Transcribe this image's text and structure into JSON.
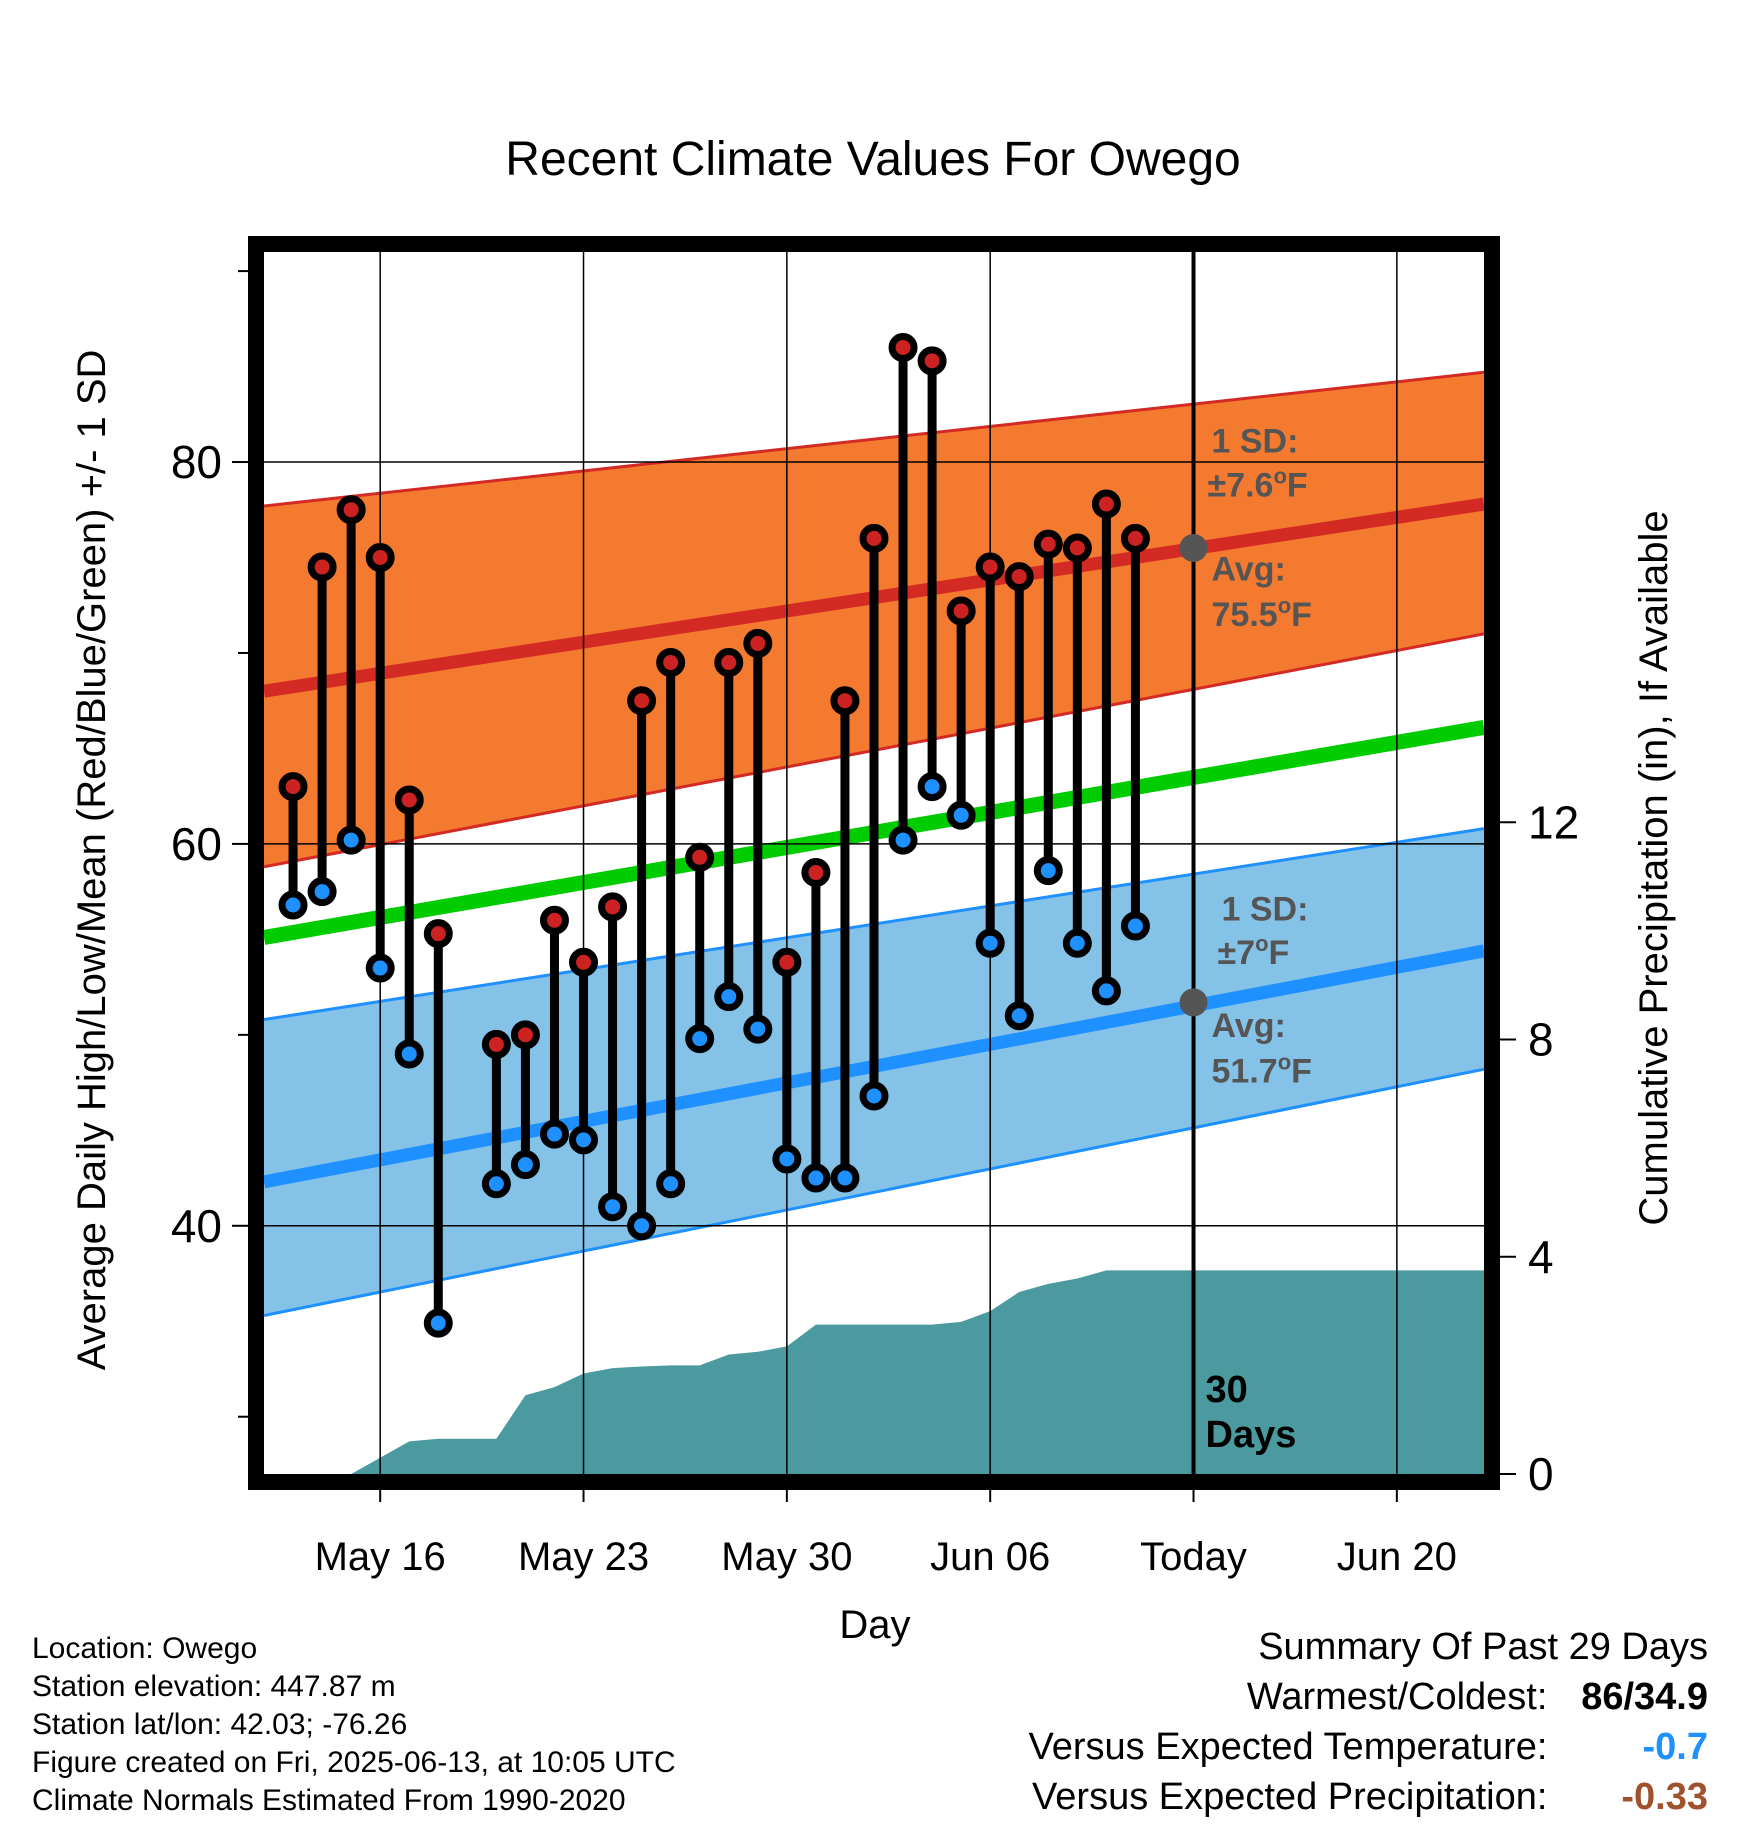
{
  "chart_data": {
    "type": "line",
    "title": "Recent Climate Values For Owego",
    "xlabel": "Day",
    "ylabel": "Average Daily High/Low/Mean (Red/Blue/Green) +/- 1 SD",
    "y2label": "Cumulative Precipitation (in), If Available",
    "xlim": [
      "2025-05-12",
      "2025-06-23"
    ],
    "ylim": [
      27,
      91
    ],
    "y2lim": [
      0,
      22.5
    ],
    "x_ticks": [
      {
        "date": "2025-05-16",
        "label": "May 16"
      },
      {
        "date": "2025-05-23",
        "label": "May 23"
      },
      {
        "date": "2025-05-30",
        "label": "May 30"
      },
      {
        "date": "2025-06-06",
        "label": "Jun 06"
      },
      {
        "date": "2025-06-13",
        "label": "Today"
      },
      {
        "date": "2025-06-20",
        "label": "Jun 20"
      }
    ],
    "y_ticks": [
      40,
      60,
      80
    ],
    "y2_ticks": [
      0,
      4,
      8,
      12
    ],
    "grid": true,
    "today": "2025-06-13",
    "period_label": [
      "30",
      "Days"
    ],
    "normals": {
      "dates": [
        "2025-05-12",
        "2025-06-23"
      ],
      "high_mean": [
        68.0,
        77.8
      ],
      "high_upper": [
        77.7,
        84.7
      ],
      "high_lower": [
        58.8,
        71.0
      ],
      "low_mean": [
        42.3,
        54.4
      ],
      "low_upper": [
        50.8,
        60.8
      ],
      "low_lower": [
        35.3,
        48.2
      ],
      "mean": [
        55.1,
        66.1
      ]
    },
    "series": [
      {
        "name": "High",
        "color": "#cc2222",
        "x": [
          "2025-05-13",
          "2025-05-14",
          "2025-05-15",
          "2025-05-16",
          "2025-05-17",
          "2025-05-18",
          "2025-05-20",
          "2025-05-21",
          "2025-05-22",
          "2025-05-23",
          "2025-05-24",
          "2025-05-25",
          "2025-05-26",
          "2025-05-27",
          "2025-05-28",
          "2025-05-29",
          "2025-05-30",
          "2025-05-31",
          "2025-06-01",
          "2025-06-02",
          "2025-06-03",
          "2025-06-04",
          "2025-06-05",
          "2025-06-06",
          "2025-06-07",
          "2025-06-08",
          "2025-06-09",
          "2025-06-10",
          "2025-06-11",
          "2025-06-12"
        ],
        "values": [
          63.0,
          74.5,
          77.5,
          75.0,
          62.3,
          55.3,
          49.5,
          50.0,
          56.0,
          53.8,
          56.7,
          67.5,
          69.5,
          59.3,
          69.5,
          70.5,
          53.8,
          58.5,
          67.5,
          76.0,
          86.0,
          85.3,
          72.2,
          74.5,
          74.0,
          75.7,
          75.5,
          77.8,
          76.0,
          null
        ]
      },
      {
        "name": "Low",
        "color": "#1e90ff",
        "x": [
          "2025-05-13",
          "2025-05-14",
          "2025-05-15",
          "2025-05-16",
          "2025-05-17",
          "2025-05-18",
          "2025-05-20",
          "2025-05-21",
          "2025-05-22",
          "2025-05-23",
          "2025-05-24",
          "2025-05-25",
          "2025-05-26",
          "2025-05-27",
          "2025-05-28",
          "2025-05-29",
          "2025-05-30",
          "2025-05-31",
          "2025-06-01",
          "2025-06-02",
          "2025-06-03",
          "2025-06-04",
          "2025-06-05",
          "2025-06-06",
          "2025-06-07",
          "2025-06-08",
          "2025-06-09",
          "2025-06-10",
          "2025-06-11",
          "2025-06-12"
        ],
        "values": [
          56.8,
          57.5,
          60.2,
          53.5,
          49.0,
          34.9,
          42.2,
          43.2,
          44.8,
          44.5,
          41.0,
          40.0,
          42.2,
          49.8,
          52.0,
          50.3,
          43.5,
          42.5,
          42.5,
          46.8,
          60.2,
          63.0,
          61.5,
          54.8,
          51.0,
          58.6,
          54.8,
          52.3,
          55.7,
          null
        ]
      }
    ],
    "precip_cumulative": {
      "x": [
        "2025-05-12",
        "2025-05-14",
        "2025-05-15",
        "2025-05-16",
        "2025-05-17",
        "2025-05-18",
        "2025-05-19",
        "2025-05-20",
        "2025-05-21",
        "2025-05-22",
        "2025-05-23",
        "2025-05-24",
        "2025-05-25",
        "2025-05-26",
        "2025-05-27",
        "2025-05-28",
        "2025-05-29",
        "2025-05-30",
        "2025-05-31",
        "2025-06-01",
        "2025-06-02",
        "2025-06-03",
        "2025-06-04",
        "2025-06-05",
        "2025-06-06",
        "2025-06-07",
        "2025-06-08",
        "2025-06-09",
        "2025-06-10",
        "2025-06-11",
        "2025-06-12",
        "2025-06-13",
        "2025-06-23"
      ],
      "values": [
        0.0,
        0.0,
        0.0,
        0.3,
        0.6,
        0.65,
        0.65,
        0.65,
        1.45,
        1.6,
        1.85,
        1.95,
        1.98,
        2.0,
        2.0,
        2.2,
        2.25,
        2.35,
        2.75,
        2.75,
        2.75,
        2.75,
        2.75,
        2.8,
        3.0,
        3.35,
        3.5,
        3.6,
        3.75,
        3.75,
        3.75,
        3.75,
        3.75
      ]
    },
    "annotations": {
      "high_sd": [
        "1 SD:",
        "±7.6°F"
      ],
      "high_avg": [
        "Avg:",
        "75.5°F"
      ],
      "low_sd": [
        "1 SD:",
        "±7°F"
      ],
      "low_avg": [
        "Avg:",
        "51.7°F"
      ],
      "high_avg_today": 75.5,
      "low_avg_today": 51.7
    }
  },
  "info": {
    "location": "Location: Owego",
    "elevation": "Station elevation: 447.87 m",
    "latlon": "Station lat/lon: 42.03; -76.26",
    "created": "Figure created on Fri, 2025-06-13, at 10:05 UTC",
    "normals": "Climate Normals Estimated From 1990-2020"
  },
  "summary": {
    "title": "Summary Of Past 29 Days",
    "warmest_label": "Warmest/Coldest:",
    "warmest_value": "86/34.9",
    "temp_label": "Versus Expected Temperature:",
    "temp_value": "-0.7",
    "precip_label": "Versus Expected Precipitation:",
    "precip_value": "-0.33"
  },
  "colors": {
    "high_band": "#f47a30",
    "high_line": "#d42a24",
    "low_band": "#85c2e8",
    "low_line": "#1e90ff",
    "mean_line": "#00cc00",
    "precip": "#4a9aa0",
    "annotation": "#555555",
    "temp_diff": "#1e90ff",
    "precip_diff": "#a0522d"
  }
}
